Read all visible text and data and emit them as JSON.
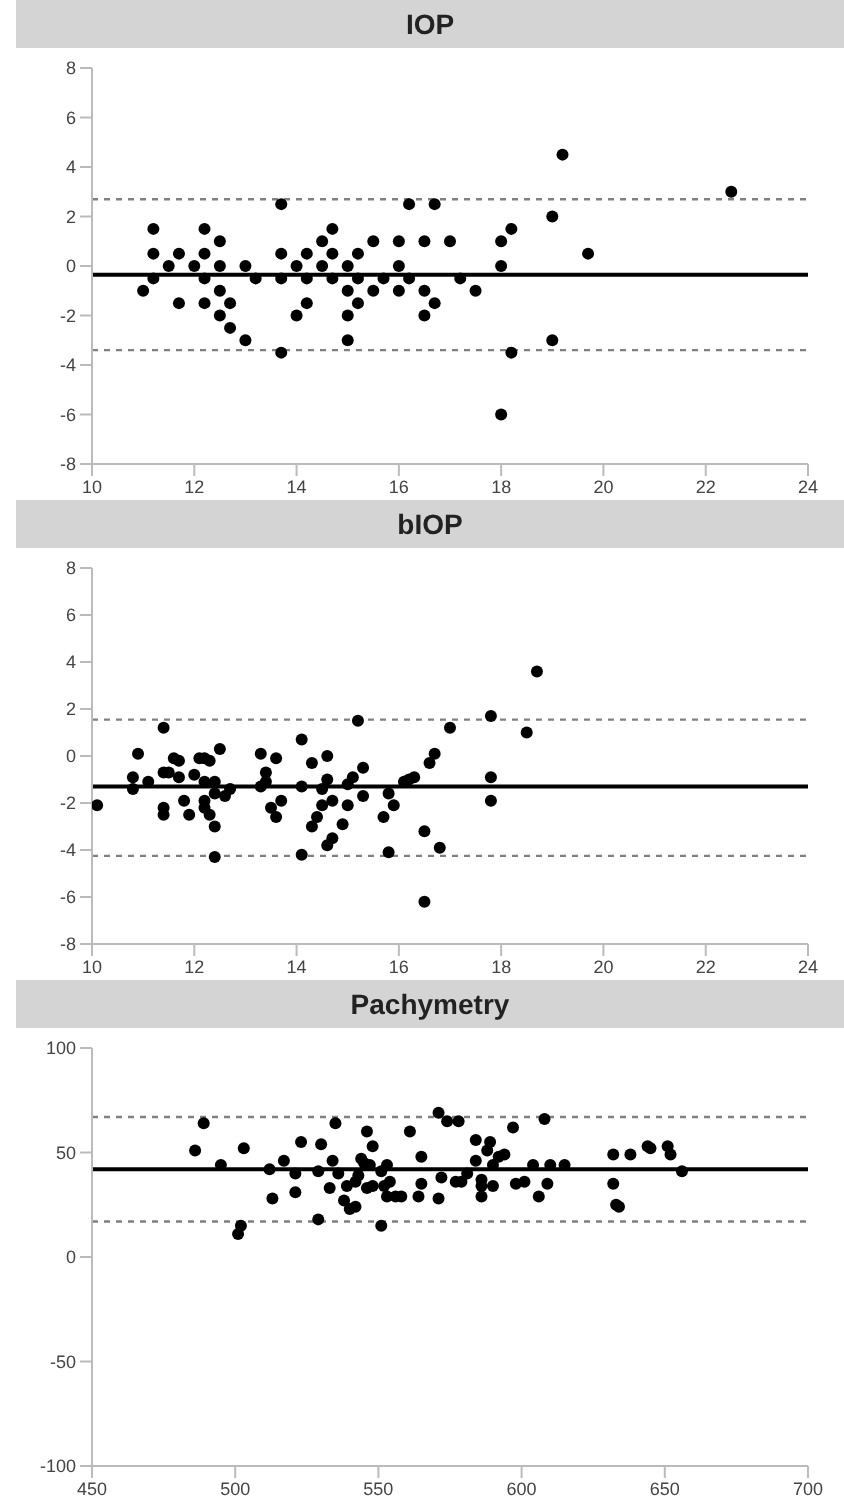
{
  "chart_data": [
    {
      "type": "scatter",
      "title": "IOP",
      "marker": "circle",
      "xlim": [
        10,
        24
      ],
      "xticks": [
        10,
        12,
        14,
        16,
        18,
        20,
        22,
        24
      ],
      "ylim": [
        -8,
        8
      ],
      "yticks": [
        -8,
        -6,
        -4,
        -2,
        0,
        2,
        4,
        6,
        8
      ],
      "ref_lines": [
        {
          "axis": "y",
          "value": 2.7,
          "line_style": "dashed",
          "color": "#808080"
        },
        {
          "axis": "y",
          "value": -0.35,
          "line_style": "solid",
          "color": "#000000"
        },
        {
          "axis": "y",
          "value": -3.4,
          "line_style": "dashed",
          "color": "#808080"
        }
      ],
      "series": [
        {
          "color": "#000000",
          "x": [
            11,
            11.2,
            11.2,
            11.2,
            11.5,
            11.7,
            11.7,
            12,
            12.2,
            12.2,
            12.2,
            12.2,
            12.5,
            12.5,
            12.5,
            12.5,
            12.7,
            12.7,
            13,
            13,
            13.2,
            13.7,
            13.7,
            13.7,
            13.7,
            14,
            14,
            14.2,
            14.2,
            14.2,
            14.5,
            14.5,
            14.7,
            14.7,
            14.7,
            15,
            15,
            15,
            15,
            15.2,
            15.2,
            15.2,
            15.5,
            15.5,
            15.7,
            16,
            16,
            16,
            16.2,
            16.2,
            16.5,
            16.5,
            16.5,
            16.7,
            16.7,
            17,
            17.2,
            17.5,
            18,
            18,
            18,
            18.2,
            18.2,
            19,
            19,
            19.2,
            19.7,
            22.5
          ],
          "values": [
            -1,
            1.5,
            0.5,
            -0.5,
            0,
            0.5,
            -1.5,
            0,
            1.5,
            0.5,
            -0.5,
            -1.5,
            1,
            0,
            -1,
            -2,
            -1.5,
            -2.5,
            0,
            -3,
            -0.5,
            2.5,
            0.5,
            -0.5,
            -3.5,
            0,
            -2,
            0.5,
            -0.5,
            -1.5,
            1,
            0,
            1.5,
            0.5,
            -0.5,
            0,
            -1,
            -2,
            -3,
            0.5,
            -0.5,
            -1.5,
            1,
            -1,
            -0.5,
            1,
            0,
            -1,
            2.5,
            -0.5,
            1,
            -1,
            -2,
            2.5,
            -1.5,
            1,
            -0.5,
            -1,
            1,
            0,
            -6,
            1.5,
            -3.5,
            2,
            -3,
            4.5,
            0.5,
            3
          ]
        }
      ]
    },
    {
      "type": "scatter",
      "title": "bIOP",
      "marker": "circle",
      "xlim": [
        10,
        24
      ],
      "xticks": [
        10,
        12,
        14,
        16,
        18,
        20,
        22,
        24
      ],
      "ylim": [
        -8,
        8
      ],
      "yticks": [
        -8,
        -6,
        -4,
        -2,
        0,
        2,
        4,
        6,
        8
      ],
      "ref_lines": [
        {
          "axis": "y",
          "value": 1.55,
          "line_style": "dashed",
          "color": "#808080"
        },
        {
          "axis": "y",
          "value": -1.3,
          "line_style": "solid",
          "color": "#000000"
        },
        {
          "axis": "y",
          "value": -4.25,
          "line_style": "dashed",
          "color": "#808080"
        }
      ],
      "series": [
        {
          "color": "#000000",
          "x": [
            10.1,
            10.8,
            10.8,
            10.9,
            11.1,
            11.4,
            11.4,
            11.5,
            11.4,
            11.4,
            11.6,
            11.7,
            11.7,
            11.8,
            11.9,
            12,
            12.1,
            12.2,
            12.3,
            12.2,
            12.2,
            12.2,
            12.3,
            12.4,
            12.4,
            12.4,
            12.4,
            12.5,
            12.6,
            12.7,
            13.3,
            13.3,
            13.4,
            13.4,
            13.5,
            13.6,
            13.6,
            13.7,
            14.1,
            14.1,
            14.1,
            14.3,
            14.3,
            14.4,
            14.5,
            14.5,
            14.6,
            14.6,
            14.6,
            14.7,
            14.7,
            14.9,
            15,
            15,
            15.1,
            15.2,
            15.3,
            15.3,
            15.7,
            15.8,
            15.8,
            15.9,
            16.1,
            16.2,
            16.3,
            16.5,
            16.5,
            16.6,
            16.7,
            16.8,
            17,
            17.8,
            17.8,
            17.8,
            18.5,
            18.7
          ],
          "values": [
            -2.1,
            -1.4,
            -0.9,
            0.1,
            -1.1,
            1.2,
            -0.7,
            -0.7,
            -2.2,
            -2.5,
            -0.1,
            -0.2,
            -0.9,
            -1.9,
            -2.5,
            -0.8,
            -0.1,
            -0.1,
            -0.2,
            -1.1,
            -1.9,
            -2.2,
            -2.5,
            -1.1,
            -1.6,
            -3,
            -4.3,
            0.3,
            -1.7,
            -1.4,
            -1.3,
            0.1,
            -0.7,
            -1.1,
            -2.2,
            -2.6,
            -0.1,
            -1.9,
            0.7,
            -4.2,
            -1.3,
            -0.3,
            -3,
            -2.6,
            -2.1,
            -1.4,
            0,
            -1,
            -3.8,
            -3.5,
            -1.9,
            -2.9,
            -2.1,
            -1.2,
            -0.9,
            1.5,
            -1.7,
            -0.5,
            -2.6,
            -1.6,
            -4.1,
            -2.1,
            -1.1,
            -1,
            -0.9,
            -6.2,
            -3.2,
            -0.3,
            0.1,
            -3.9,
            1.2,
            1.7,
            -0.9,
            -1.9,
            1,
            3.6
          ]
        }
      ]
    },
    {
      "type": "scatter",
      "title": "Pachymetry",
      "marker": "circle",
      "xlim": [
        450,
        700
      ],
      "xticks": [
        450,
        500,
        550,
        600,
        650,
        700
      ],
      "ylim": [
        -100,
        100
      ],
      "yticks": [
        -100,
        -50,
        0,
        50,
        100
      ],
      "ref_lines": [
        {
          "axis": "y",
          "value": 67,
          "line_style": "dashed",
          "color": "#808080"
        },
        {
          "axis": "y",
          "value": 42,
          "line_style": "solid",
          "color": "#000000"
        },
        {
          "axis": "y",
          "value": 17,
          "line_style": "dashed",
          "color": "#808080"
        }
      ],
      "series": [
        {
          "color": "#000000",
          "x": [
            486,
            489,
            495,
            502,
            501,
            503,
            512,
            513,
            517,
            521,
            521,
            523,
            529,
            529,
            530,
            533,
            534,
            535,
            536,
            538,
            539,
            540,
            542,
            542,
            543,
            544,
            545,
            546,
            546,
            547,
            548,
            548,
            551,
            551,
            552,
            553,
            553,
            554,
            556,
            558,
            561,
            564,
            565,
            565,
            571,
            571,
            572,
            574,
            577,
            578,
            579,
            581,
            584,
            584,
            586,
            586,
            586,
            588,
            589,
            590,
            590,
            592,
            594,
            597,
            598,
            601,
            604,
            606,
            608,
            609,
            610,
            615,
            632,
            632,
            633,
            634,
            638,
            644,
            645,
            651,
            652,
            656
          ],
          "values": [
            51,
            64,
            44,
            15,
            11,
            52,
            42,
            28,
            46,
            40,
            31,
            55,
            41,
            18,
            54,
            33,
            46,
            64,
            40,
            27,
            34,
            23,
            24,
            36,
            39,
            47,
            45,
            60,
            33,
            44,
            53,
            34,
            41,
            15,
            34,
            44,
            29,
            36,
            29,
            29,
            60,
            29,
            48,
            35,
            69,
            28,
            38,
            65,
            36,
            65,
            36,
            40,
            46,
            56,
            37,
            29,
            34,
            51,
            55,
            34,
            44,
            48,
            49,
            62,
            35,
            36,
            44,
            29,
            66,
            35,
            44,
            44,
            49,
            35,
            25,
            24,
            49,
            53,
            52,
            53,
            49,
            41
          ]
        }
      ]
    }
  ]
}
